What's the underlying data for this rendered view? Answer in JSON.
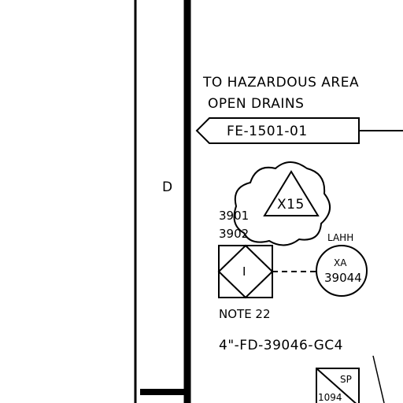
{
  "drawing": {
    "zone_letter": "D",
    "destination_note_line1": "TO HAZARDOUS AREA",
    "destination_note_line2": "OPEN DRAINS",
    "offpage_connector_tag": "FE-1501-01",
    "revision_flag": "X15",
    "instrument_numbers": [
      "3901",
      "3902"
    ],
    "interlock_symbol_text": "I",
    "interlock_note": "NOTE 22",
    "alarm": {
      "function_label": "LAHH",
      "tag_prefix": "XA",
      "tag_number": "39044"
    },
    "line_number": "4\"-FD-39046-GC4",
    "sample_point": {
      "label": "SP",
      "number": "1094"
    }
  }
}
